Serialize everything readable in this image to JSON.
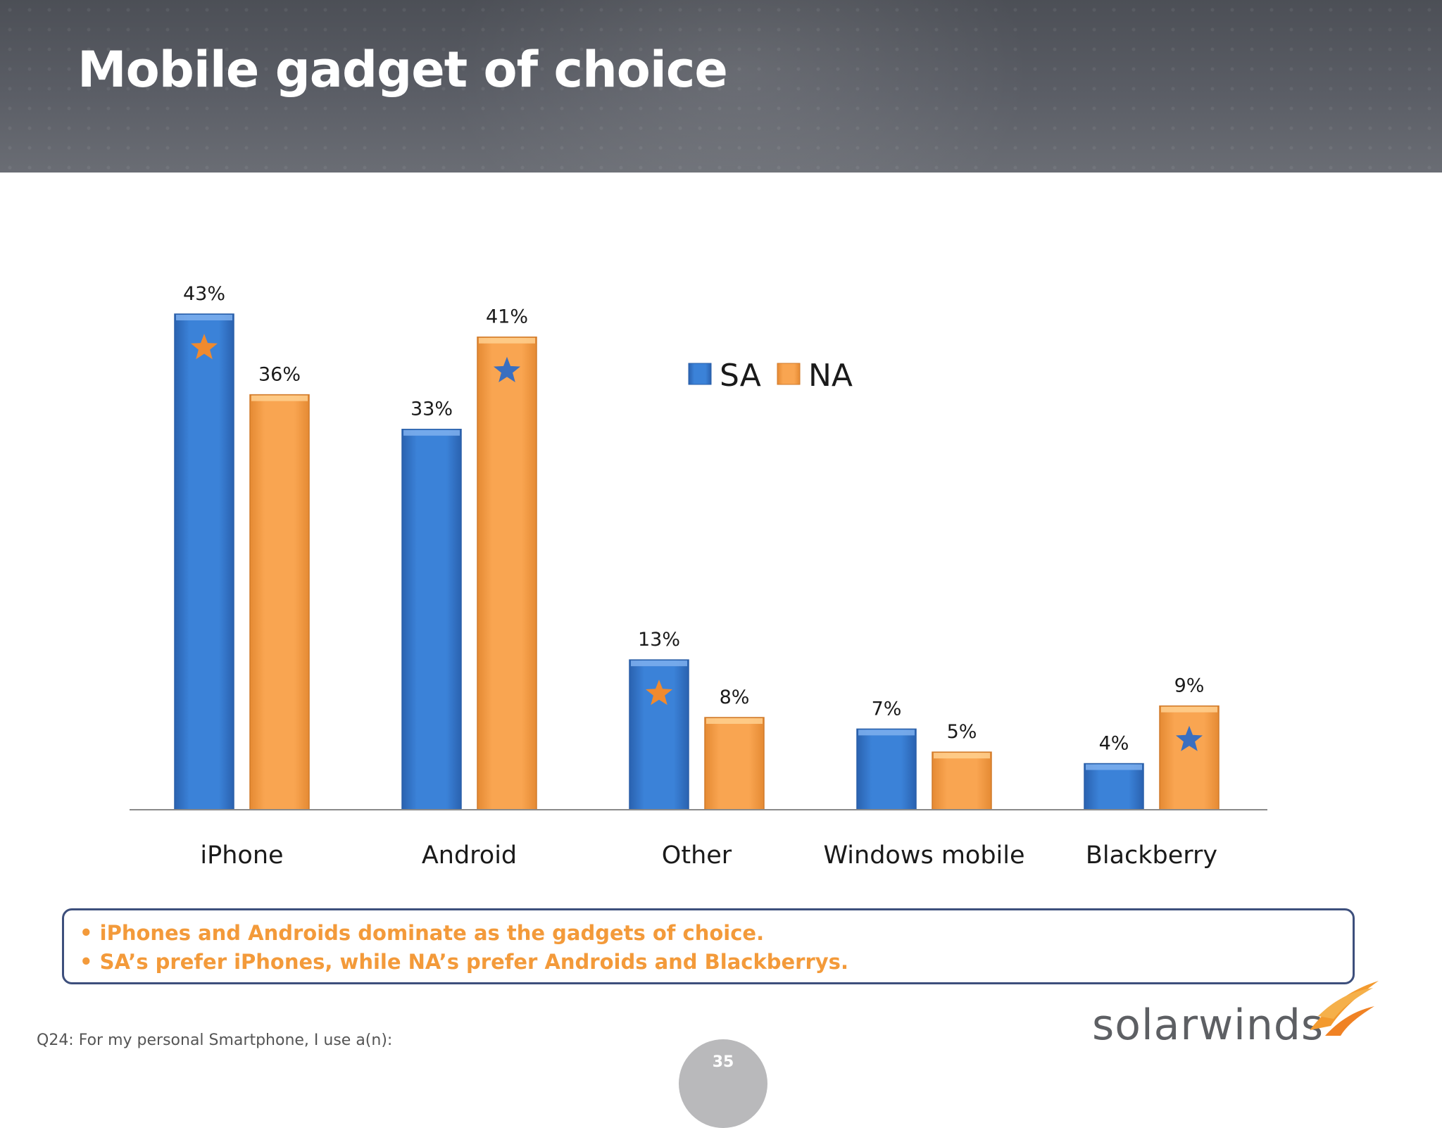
{
  "title": "Mobile gadget of choice",
  "chart_data": {
    "type": "bar",
    "categories": [
      "iPhone",
      "Android",
      "Other",
      "Windows mobile",
      "Blackberry"
    ],
    "series": [
      {
        "name": "SA",
        "color": "#3a7fd5",
        "values": [
          43,
          33,
          13,
          7,
          4
        ],
        "labels": [
          "43%",
          "33%",
          "13%",
          "7%",
          "4%"
        ],
        "starred": [
          true,
          false,
          true,
          false,
          false
        ]
      },
      {
        "name": "NA",
        "color": "#f7a04e",
        "values": [
          36,
          41,
          8,
          5,
          9
        ],
        "labels": [
          "36%",
          "41%",
          "8%",
          "5%",
          "9%"
        ],
        "starred": [
          false,
          true,
          false,
          false,
          true
        ]
      }
    ],
    "star_colors": {
      "on_SA": "#f08a2e",
      "on_NA": "#3a6fc0"
    },
    "ylim": [
      0,
      43
    ],
    "legend_position": "top-center",
    "grid": false
  },
  "summary": {
    "bullet_1": "• iPhones and Androids dominate as the gadgets of choice.",
    "bullet_2": "• SA’s prefer iPhones, while NA’s prefer Androids and Blackberrys."
  },
  "footnote": "Q24: For my personal Smartphone, I use a(n):",
  "logo_text": "solarwinds",
  "page_number": "35"
}
